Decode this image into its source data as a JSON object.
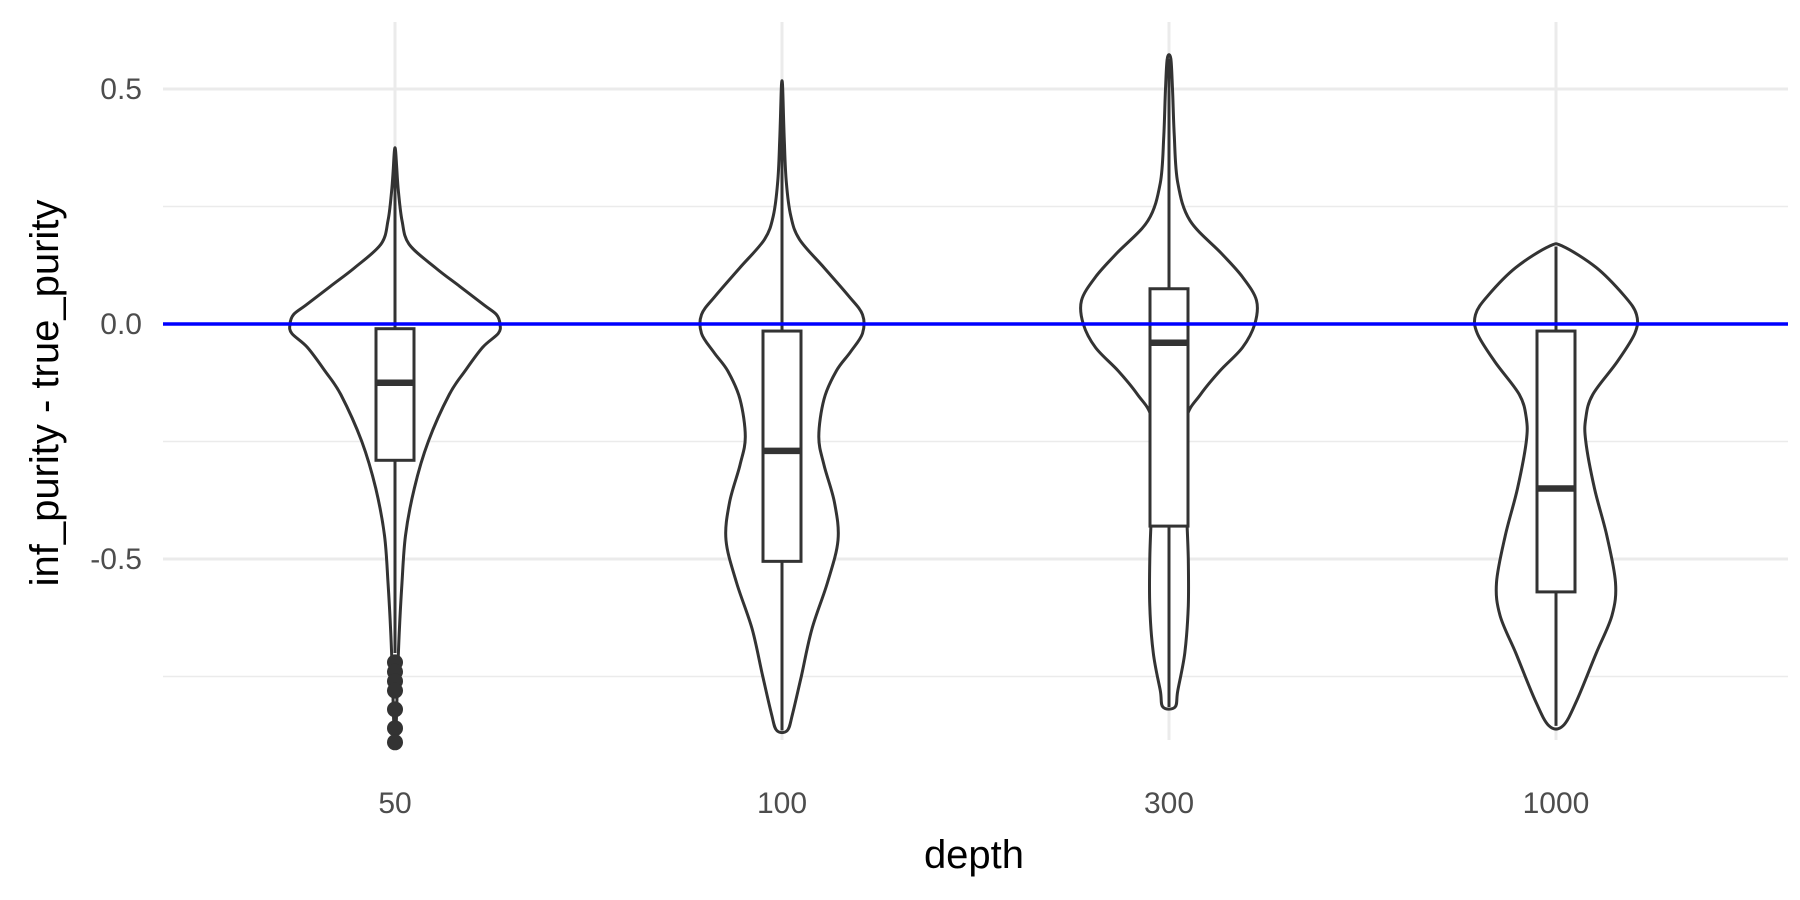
{
  "chart_data": {
    "type": "violin",
    "xlabel": "depth",
    "ylabel": "inf_purity - true_purity",
    "categories": [
      "50",
      "100",
      "300",
      "1000"
    ],
    "ylim": [
      -0.92,
      0.6
    ],
    "y_ticks": [
      -0.5,
      0.0,
      0.5
    ],
    "y_tick_labels": [
      "-0.5",
      "0.0",
      "0.5"
    ],
    "grid": true,
    "reference_line": {
      "y": 0.0,
      "color": "#0000ff"
    },
    "colors": {
      "violin_stroke": "#333333",
      "reference_line": "#0000ff",
      "grid": "#ebebeb"
    },
    "series": [
      {
        "category": "50",
        "box": {
          "q1": -0.29,
          "median": -0.125,
          "q3": -0.01,
          "whisker_low": -0.7,
          "whisker_high": 0.37
        },
        "outliers": [
          -0.72,
          -0.74,
          -0.76,
          -0.78,
          -0.82,
          -0.86,
          -0.89
        ],
        "violin": [
          [
            0.37,
            0.003
          ],
          [
            0.33,
            0.01
          ],
          [
            0.28,
            0.02
          ],
          [
            0.22,
            0.04
          ],
          [
            0.17,
            0.08
          ],
          [
            0.12,
            0.23
          ],
          [
            0.08,
            0.37
          ],
          [
            0.04,
            0.51
          ],
          [
            0.02,
            0.58
          ],
          [
            0.0,
            0.6
          ],
          [
            -0.02,
            0.59
          ],
          [
            -0.05,
            0.5
          ],
          [
            -0.1,
            0.4
          ],
          [
            -0.15,
            0.31
          ],
          [
            -0.25,
            0.19
          ],
          [
            -0.35,
            0.11
          ],
          [
            -0.45,
            0.06
          ],
          [
            -0.55,
            0.04
          ],
          [
            -0.65,
            0.025
          ],
          [
            -0.75,
            0.015
          ],
          [
            -0.84,
            0.008
          ],
          [
            -0.88,
            0.002
          ]
        ]
      },
      {
        "category": "100",
        "box": {
          "q1": -0.505,
          "median": -0.27,
          "q3": -0.015,
          "whisker_low": -0.865,
          "whisker_high": 0.51
        },
        "outliers": [],
        "violin": [
          [
            0.51,
            0.003
          ],
          [
            0.45,
            0.008
          ],
          [
            0.38,
            0.014
          ],
          [
            0.3,
            0.025
          ],
          [
            0.23,
            0.05
          ],
          [
            0.18,
            0.1
          ],
          [
            0.12,
            0.24
          ],
          [
            0.06,
            0.38
          ],
          [
            0.02,
            0.46
          ],
          [
            -0.02,
            0.46
          ],
          [
            -0.06,
            0.39
          ],
          [
            -0.1,
            0.31
          ],
          [
            -0.16,
            0.24
          ],
          [
            -0.24,
            0.21
          ],
          [
            -0.3,
            0.24
          ],
          [
            -0.38,
            0.3
          ],
          [
            -0.46,
            0.32
          ],
          [
            -0.55,
            0.26
          ],
          [
            -0.65,
            0.17
          ],
          [
            -0.75,
            0.11
          ],
          [
            -0.83,
            0.06
          ],
          [
            -0.865,
            0.03
          ]
        ]
      },
      {
        "category": "300",
        "box": {
          "q1": -0.43,
          "median": -0.04,
          "q3": 0.075,
          "whisker_low": -0.815,
          "whisker_high": 0.565
        },
        "outliers": [],
        "violin": [
          [
            0.565,
            0.01
          ],
          [
            0.5,
            0.02
          ],
          [
            0.4,
            0.03
          ],
          [
            0.3,
            0.05
          ],
          [
            0.22,
            0.12
          ],
          [
            0.15,
            0.3
          ],
          [
            0.1,
            0.42
          ],
          [
            0.05,
            0.5
          ],
          [
            0.0,
            0.49
          ],
          [
            -0.05,
            0.42
          ],
          [
            -0.1,
            0.29
          ],
          [
            -0.15,
            0.18
          ],
          [
            -0.2,
            0.1
          ],
          [
            -0.3,
            0.09
          ],
          [
            -0.4,
            0.1
          ],
          [
            -0.5,
            0.11
          ],
          [
            -0.6,
            0.11
          ],
          [
            -0.7,
            0.09
          ],
          [
            -0.78,
            0.05
          ],
          [
            -0.815,
            0.035
          ]
        ]
      },
      {
        "category": "1000",
        "box": {
          "q1": -0.57,
          "median": -0.35,
          "q3": -0.015,
          "whisker_low": -0.855,
          "whisker_high": 0.165
        },
        "outliers": [],
        "violin": [
          [
            0.165,
            0.04
          ],
          [
            0.12,
            0.23
          ],
          [
            0.06,
            0.39
          ],
          [
            0.02,
            0.46
          ],
          [
            -0.02,
            0.45
          ],
          [
            -0.08,
            0.35
          ],
          [
            -0.15,
            0.21
          ],
          [
            -0.2,
            0.17
          ],
          [
            -0.25,
            0.17
          ],
          [
            -0.35,
            0.22
          ],
          [
            -0.45,
            0.29
          ],
          [
            -0.55,
            0.34
          ],
          [
            -0.62,
            0.32
          ],
          [
            -0.7,
            0.23
          ],
          [
            -0.8,
            0.12
          ],
          [
            -0.855,
            0.04
          ]
        ]
      }
    ]
  }
}
